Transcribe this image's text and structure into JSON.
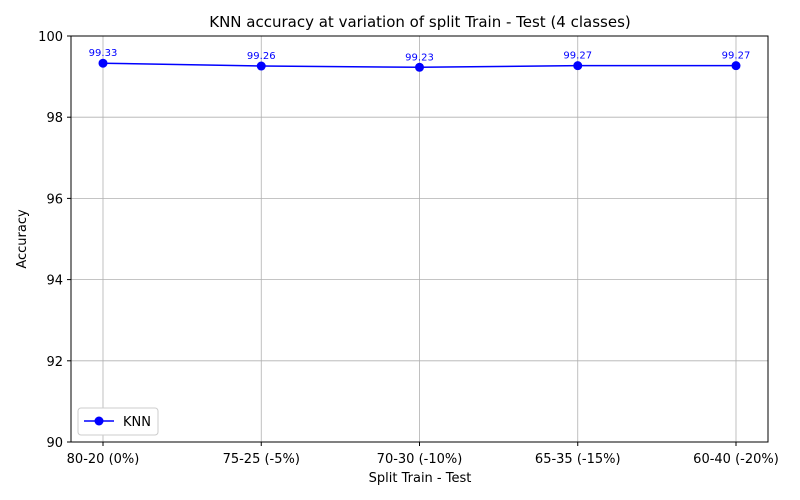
{
  "chart_data": {
    "type": "line",
    "title": "KNN accuracy at variation of split Train - Test (4 classes)",
    "xlabel": "Split Train - Test",
    "ylabel": "Accuracy",
    "categories": [
      "80-20 (0%)",
      "75-25 (-5%)",
      "70-30 (-10%)",
      "65-35 (-15%)",
      "60-40 (-20%)"
    ],
    "series": [
      {
        "name": "KNN",
        "values": [
          99.33,
          99.26,
          99.23,
          99.27,
          99.27
        ],
        "color": "#0000ff",
        "marker": "circle",
        "data_labels": [
          "99.33",
          "99.26",
          "99.23",
          "99.27",
          "99.27"
        ]
      }
    ],
    "ylim": [
      90,
      100
    ],
    "yticks": [
      90,
      92,
      94,
      96,
      98,
      100
    ],
    "ytick_labels": [
      "90",
      "92",
      "94",
      "96",
      "98",
      "100"
    ],
    "grid": true,
    "legend": "lower-left"
  }
}
